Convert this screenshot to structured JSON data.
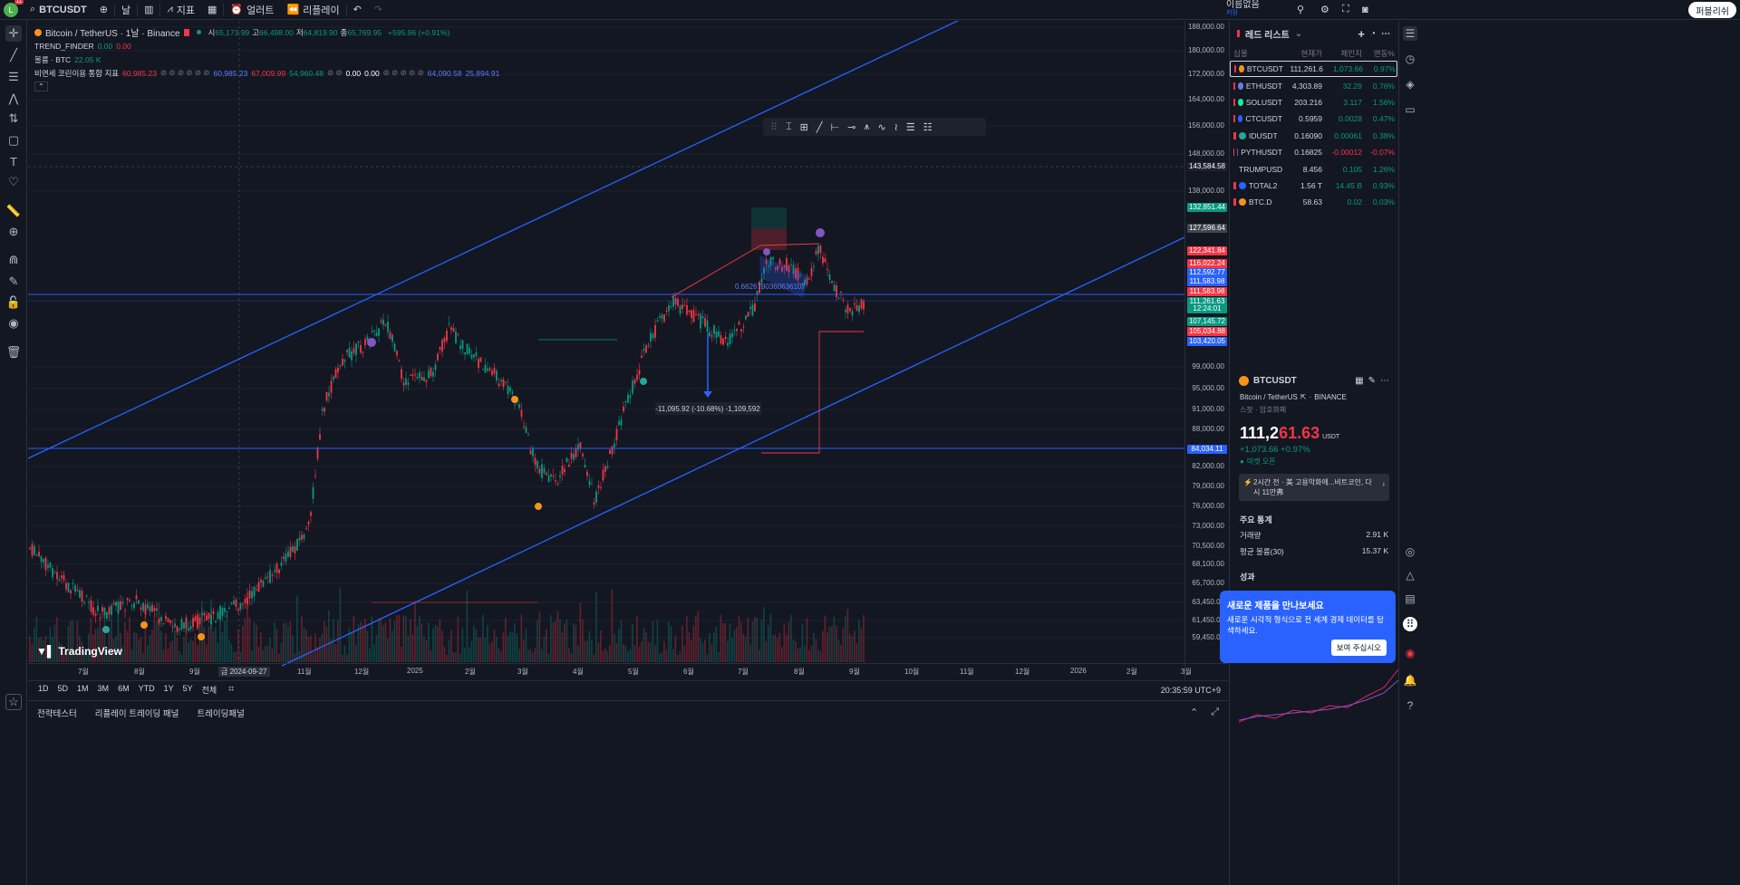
{
  "topbar": {
    "avatar_letter": "L",
    "avatar_badge": "11",
    "symbol": "BTCUSDT",
    "interval": "날",
    "indicators_label": "지표",
    "alert_label": "얼러트",
    "replay_label": "리플레이",
    "layout_name": "이름없음",
    "layout_saved": "저장",
    "publish_label": "퍼블리쉬"
  },
  "legend": {
    "title": "Bitcoin / TetherUS · 1날 · Binance",
    "ohlc": [
      {
        "k": "시",
        "v": "65,173.99"
      },
      {
        "k": "고",
        "v": "66,498.00"
      },
      {
        "k": "저",
        "v": "64,819.90"
      },
      {
        "k": "종",
        "v": "65,769.95"
      }
    ],
    "change": "+595.96 (+0.91%)",
    "trend_finder": {
      "name": "TREND_FINDER",
      "v1": "0.00",
      "v2": "0.00"
    },
    "volume": {
      "name": "볼륨 · BTC",
      "v": "22.05 K"
    },
    "custom_indicator": {
      "name": "비연세 코린이용 통합 지표",
      "v1": "60,985.23",
      "v2": "60,985.23",
      "v3": "67,009.99",
      "v4": "54,960.48",
      "v5": "0.00",
      "v6": "0.00",
      "v7": "64,090.58",
      "v8": "25,894.91"
    }
  },
  "chart": {
    "price_labels": [
      "188,000.00",
      "180,000.00",
      "172,000.00",
      "164,000.00",
      "156,000.00",
      "148,000.00",
      "138,000.00",
      "99,000.00",
      "95,000.00",
      "91,000.00",
      "88,000.00",
      "82,000.00",
      "79,000.00",
      "76,000.00",
      "73,000.00",
      "70,500.00",
      "68,100.00",
      "65,700.00",
      "63,450.00",
      "61,450.00",
      "59,450.00"
    ],
    "price_tags": [
      {
        "label": "143,584.58",
        "color": "#1e222d"
      },
      {
        "label": "132,851.44",
        "color": "#089981"
      },
      {
        "label": "127,596.64",
        "color": "#434651"
      },
      {
        "label": "122,341.84",
        "color": "#f23645"
      },
      {
        "label": "116,022.24",
        "color": "#f23645"
      },
      {
        "label": "112,592.77",
        "color": "#2962ff"
      },
      {
        "label": "111,583.98",
        "color": "#2962ff"
      },
      {
        "label": "111,583.98",
        "color": "#f23645"
      },
      {
        "label": "111,261.63",
        "color": "#089981"
      },
      {
        "label": "12:24:01",
        "color": "#089981"
      },
      {
        "label": "107,145.72",
        "color": "#089981"
      },
      {
        "label": "105,034.88",
        "color": "#f23645"
      },
      {
        "label": "103,420.05",
        "color": "#2962ff"
      },
      {
        "label": "84,034.11",
        "color": "#2962ff"
      }
    ],
    "time_labels": [
      "7월",
      "8월",
      "9월",
      "금 2024-09-27",
      "11월",
      "12월",
      "2025",
      "2월",
      "3월",
      "4월",
      "5월",
      "6월",
      "7월",
      "8월",
      "9월",
      "10월",
      "11월",
      "12월",
      "2026",
      "2월",
      "3월"
    ],
    "measure_label": "-11,095.92 (-10.68%) -1,109,592",
    "fib_label": "0.6626790360636107",
    "logo": "TradingView"
  },
  "bottom": {
    "ranges": [
      "1D",
      "5D",
      "1M",
      "3M",
      "6M",
      "YTD",
      "1Y",
      "5Y",
      "전체"
    ],
    "clock": "20:35:59 UTC+9",
    "tabs": [
      "전략테스터",
      "리플레이 트레이딩 패널",
      "트레이딩패널"
    ]
  },
  "watchlist": {
    "title": "레드 리스트",
    "columns": [
      "심볼",
      "현재가",
      "체인지",
      "변동%"
    ],
    "rows": [
      {
        "sym": "BTCUSDT",
        "price": "111,261.6",
        "chg": "1,073.66",
        "pct": "0.97%",
        "up": true,
        "coin": "#f7931a"
      },
      {
        "sym": "ETHUSDT",
        "price": "4,303.89",
        "chg": "32.29",
        "pct": "0.76%",
        "up": true,
        "coin": "#627eea"
      },
      {
        "sym": "SOLUSDT",
        "price": "203.216",
        "chg": "3.117",
        "pct": "1.56%",
        "up": true,
        "coin": "#14f195"
      },
      {
        "sym": "CTCUSDT",
        "price": "0.5959",
        "chg": "0.0028",
        "pct": "0.47%",
        "up": true,
        "coin": "#2962ff"
      },
      {
        "sym": "IDUSDT",
        "price": "0.16090",
        "chg": "0.00061",
        "pct": "0.38%",
        "up": true,
        "coin": "#26a69a"
      },
      {
        "sym": "PYTHUSDT",
        "price": "0.16825",
        "chg": "-0.00012",
        "pct": "-0.07%",
        "up": false,
        "coin": "#7e57c2"
      },
      {
        "sym": "TRUMPUSDT",
        "price": "8.456",
        "chg": "0.105",
        "pct": "1.26%",
        "up": true,
        "coin": "#d4af37"
      },
      {
        "sym": "TOTAL2",
        "price": "1.56 T",
        "chg": "14.45 B",
        "pct": "0.93%",
        "up": true,
        "coin": "#2962ff"
      },
      {
        "sym": "BTC.D",
        "price": "58.63",
        "chg": "0.02",
        "pct": "0.03%",
        "up": true,
        "coin": "#f7931a"
      }
    ]
  },
  "detail": {
    "symbol": "BTCUSDT",
    "fullname": "Bitcoin / TetherUS",
    "exchange": "BINANCE",
    "category": "스팟 · 암호화폐",
    "price_main": "111,2",
    "price_tail": "61.63",
    "currency": "USDT",
    "change": "+1,073.66 +0.97%",
    "market_status": "마켓 오픈",
    "news": "2시간 전 · 美 고용악화에...비트코인, 다시 11만弗",
    "stats_title": "주요 통계",
    "stat1_label": "거래량",
    "stat1_value": "2.91 K",
    "stat2_label": "평균 볼륨(30)",
    "stat2_value": "15.37 K",
    "perf_title": "성과"
  },
  "toast": {
    "title": "새로운 제품을 만나보세요",
    "body": "새로운 시각적 형식으로 전 세계 경제 데이터를 탐색하세요.",
    "button": "보여 주십시오"
  }
}
